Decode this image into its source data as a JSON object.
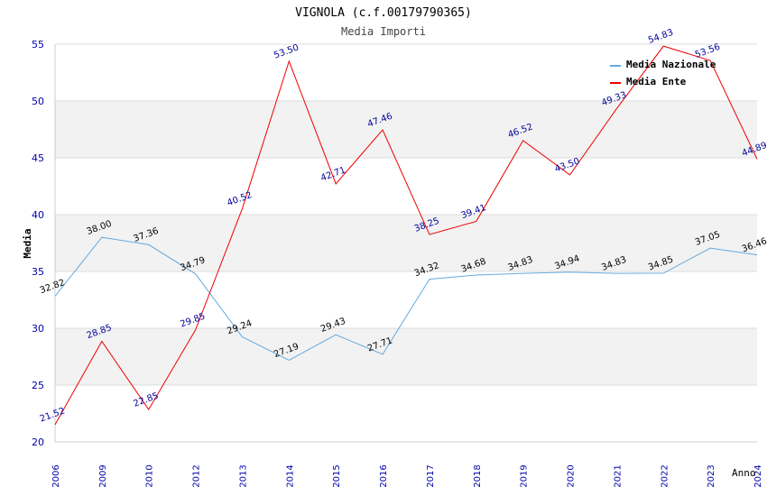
{
  "chart_data": {
    "type": "line",
    "title": "VIGNOLA (c.f.00179790365)",
    "subtitle": "Media Importi",
    "xlabel": "Anno",
    "ylabel": "Media",
    "ylim": [
      20,
      55
    ],
    "yticks": [
      20,
      25,
      30,
      35,
      40,
      45,
      50,
      55
    ],
    "categories": [
      "2006",
      "2009",
      "2010",
      "2012",
      "2013",
      "2014",
      "2015",
      "2016",
      "2017",
      "2018",
      "2019",
      "2020",
      "2021",
      "2022",
      "2023",
      "2024"
    ],
    "series": [
      {
        "name": "Media Nazionale",
        "color": "#66aadd",
        "values": [
          32.82,
          38.0,
          37.36,
          34.79,
          29.24,
          27.19,
          29.43,
          27.71,
          34.32,
          34.68,
          34.83,
          34.94,
          34.83,
          34.85,
          37.05,
          36.46
        ],
        "labels": [
          "32.82",
          "38.00",
          "37.36",
          "34.79",
          "29.24",
          "27.19",
          "29.43",
          "27.71",
          "34.32",
          "34.68",
          "34.83",
          "34.94",
          "34.83",
          "34.85",
          "37.05",
          "36.46"
        ]
      },
      {
        "name": "Media Ente",
        "color": "#ee0000",
        "values": [
          21.52,
          28.85,
          22.85,
          29.85,
          40.52,
          53.5,
          42.71,
          47.46,
          38.25,
          39.41,
          46.52,
          43.5,
          49.33,
          54.83,
          53.56,
          44.89
        ],
        "labels": [
          "21.52",
          "28.85",
          "22.85",
          "29.85",
          "40.52",
          "53.50",
          "42.71",
          "47.46",
          "38.25",
          "39.41",
          "46.52",
          "43.50",
          "49.33",
          "54.83",
          "53.56",
          "44.89"
        ]
      }
    ],
    "legend_position": "top-right",
    "grid": true
  }
}
